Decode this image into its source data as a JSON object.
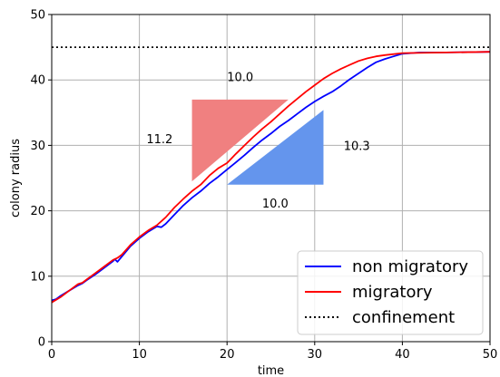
{
  "chart_data": {
    "type": "line",
    "title": "",
    "xlabel": "time",
    "ylabel": "colony radius",
    "xlim": [
      0,
      50
    ],
    "ylim": [
      0,
      50
    ],
    "x_ticks": [
      0,
      10,
      20,
      30,
      40,
      50
    ],
    "y_ticks": [
      0,
      10,
      20,
      30,
      40,
      50
    ],
    "grid": true,
    "legend_position": "bottom-right",
    "series": [
      {
        "name": "non migratory",
        "color": "#0000ff",
        "points": [
          [
            0,
            6.3
          ],
          [
            0.5,
            6.5
          ],
          [
            1,
            7.0
          ],
          [
            2,
            7.8
          ],
          [
            3,
            8.6
          ],
          [
            3.5,
            8.9
          ],
          [
            4,
            9.4
          ],
          [
            5,
            10.3
          ],
          [
            6,
            11.3
          ],
          [
            7,
            12.3
          ],
          [
            7.2,
            12.6
          ],
          [
            7.5,
            12.2
          ],
          [
            8,
            13.0
          ],
          [
            9,
            14.6
          ],
          [
            10,
            15.8
          ],
          [
            11,
            16.8
          ],
          [
            12,
            17.6
          ],
          [
            12.5,
            17.5
          ],
          [
            13,
            18.0
          ],
          [
            14,
            19.4
          ],
          [
            15,
            20.8
          ],
          [
            16,
            22.0
          ],
          [
            17,
            23.0
          ],
          [
            18,
            24.2
          ],
          [
            19,
            25.2
          ],
          [
            20,
            26.3
          ],
          [
            21,
            27.4
          ],
          [
            22,
            28.5
          ],
          [
            23,
            29.7
          ],
          [
            24,
            30.8
          ],
          [
            25,
            31.8
          ],
          [
            26,
            32.9
          ],
          [
            27,
            33.8
          ],
          [
            28,
            34.8
          ],
          [
            29,
            35.8
          ],
          [
            30,
            36.7
          ],
          [
            31,
            37.5
          ],
          [
            32,
            38.2
          ],
          [
            33,
            39.1
          ],
          [
            34,
            40.1
          ],
          [
            35,
            41.0
          ],
          [
            36,
            41.9
          ],
          [
            37,
            42.7
          ],
          [
            38,
            43.2
          ],
          [
            39,
            43.6
          ],
          [
            40,
            44.0
          ],
          [
            42,
            44.2
          ],
          [
            45,
            44.2
          ],
          [
            50,
            44.3
          ]
        ]
      },
      {
        "name": "migratory",
        "color": "#ff0000",
        "points": [
          [
            0,
            6.0
          ],
          [
            0.5,
            6.4
          ],
          [
            1,
            6.8
          ],
          [
            2,
            7.8
          ],
          [
            3,
            8.8
          ],
          [
            3.5,
            9.0
          ],
          [
            4,
            9.5
          ],
          [
            5,
            10.5
          ],
          [
            6,
            11.5
          ],
          [
            7,
            12.5
          ],
          [
            7.5,
            12.8
          ],
          [
            8,
            13.3
          ],
          [
            9,
            14.8
          ],
          [
            10,
            16.0
          ],
          [
            11,
            17.0
          ],
          [
            12,
            17.8
          ],
          [
            13,
            19.0
          ],
          [
            14,
            20.5
          ],
          [
            15,
            21.8
          ],
          [
            16,
            23.0
          ],
          [
            17,
            24.0
          ],
          [
            18,
            25.4
          ],
          [
            19,
            26.5
          ],
          [
            20,
            27.3
          ],
          [
            21,
            28.7
          ],
          [
            22,
            30.0
          ],
          [
            23,
            31.3
          ],
          [
            24,
            32.5
          ],
          [
            25,
            33.6
          ],
          [
            26,
            34.8
          ],
          [
            27,
            36.0
          ],
          [
            28,
            37.1
          ],
          [
            29,
            38.2
          ],
          [
            30,
            39.2
          ],
          [
            31,
            40.2
          ],
          [
            32,
            41.0
          ],
          [
            33,
            41.7
          ],
          [
            34,
            42.3
          ],
          [
            35,
            42.9
          ],
          [
            36,
            43.3
          ],
          [
            37,
            43.6
          ],
          [
            38,
            43.8
          ],
          [
            40,
            44.1
          ],
          [
            45,
            44.2
          ],
          [
            50,
            44.3
          ]
        ]
      },
      {
        "name": "confinement",
        "color": "#000000",
        "style": "dotted",
        "points": [
          [
            0,
            45
          ],
          [
            50,
            45
          ]
        ]
      }
    ],
    "triangles": [
      {
        "color": "#f08080",
        "vertices": [
          [
            16,
            37
          ],
          [
            27,
            37
          ],
          [
            16,
            24.5
          ]
        ]
      },
      {
        "color": "#6495ed",
        "vertices": [
          [
            20,
            24
          ],
          [
            31,
            24
          ],
          [
            31,
            35.4
          ]
        ]
      }
    ],
    "annotations": [
      {
        "text": "10.0",
        "x": 21.5,
        "y": 39.8
      },
      {
        "text": "11.2",
        "x": 12.3,
        "y": 30.3
      },
      {
        "text": "10.3",
        "x": 34.8,
        "y": 29.3
      },
      {
        "text": "10.0",
        "x": 25.5,
        "y": 20.5
      }
    ]
  }
}
